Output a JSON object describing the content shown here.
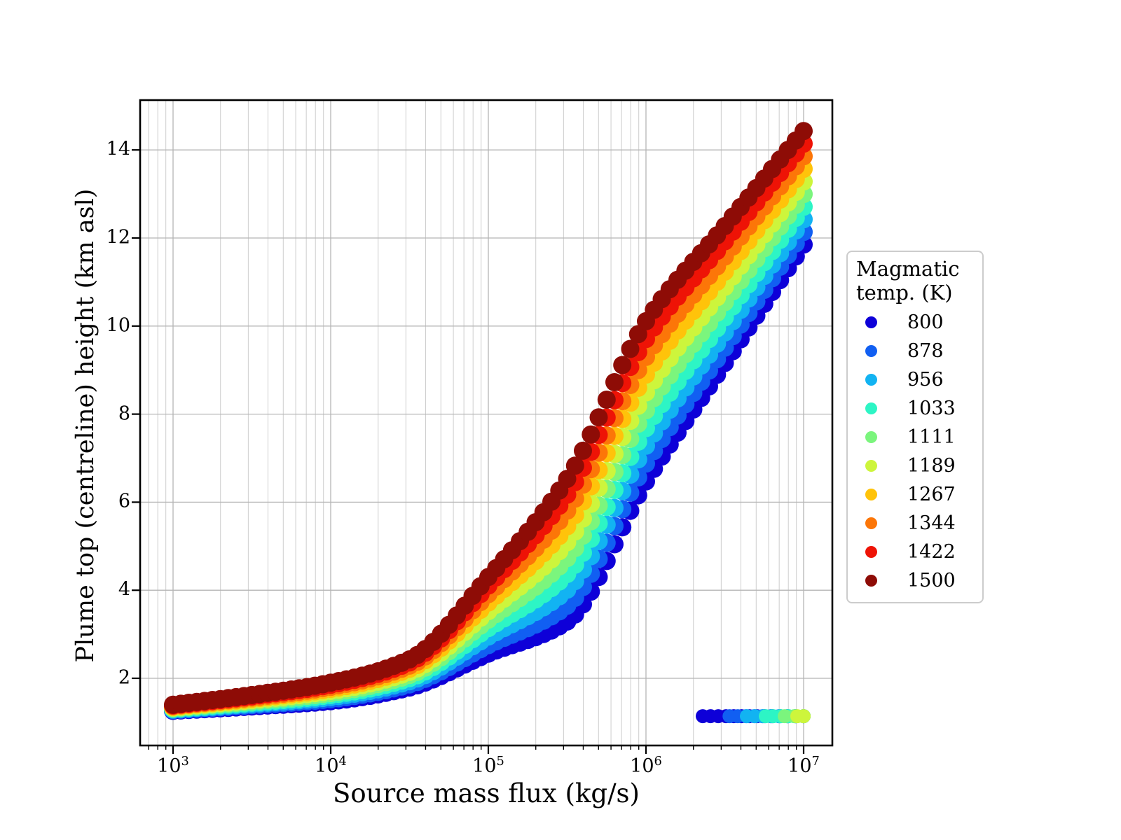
{
  "chart_data": {
    "type": "scatter",
    "title": "",
    "xlabel": "Source mass flux (kg/s)",
    "ylabel": "Plume top (centreline) height (km asl)",
    "x_scale": "log",
    "x_tick_base": "10",
    "x_tick_exponents": [
      3,
      4,
      5,
      6,
      7
    ],
    "y_ticks": [
      2,
      4,
      6,
      8,
      10,
      12,
      14
    ],
    "xlim_log10": [
      2.791,
      7.182
    ],
    "ylim": [
      0.47,
      15.13
    ],
    "grid": {
      "x_major": true,
      "x_minor": true,
      "y_major": true,
      "major_color": "#b5b5b5",
      "minor_color": "#cdcdcd"
    },
    "legend": {
      "title_lines": [
        "Magmatic",
        "temp. (K)"
      ],
      "position": "right-outside",
      "entries": [
        {
          "temp": 800,
          "label": "800",
          "color": "#0E00D8"
        },
        {
          "temp": 878,
          "label": "878",
          "color": "#115FF2"
        },
        {
          "temp": 956,
          "label": "956",
          "color": "#12B3F2"
        },
        {
          "temp": 1033,
          "label": "1033",
          "color": "#2DF5C5"
        },
        {
          "temp": 1111,
          "label": "1111",
          "color": "#7BF57D"
        },
        {
          "temp": 1189,
          "label": "1189",
          "color": "#CDF53C"
        },
        {
          "temp": 1267,
          "label": "1267",
          "color": "#FFC30A"
        },
        {
          "temp": 1344,
          "label": "1344",
          "color": "#FC7608"
        },
        {
          "temp": 1422,
          "label": "1422",
          "color": "#EE1306"
        },
        {
          "temp": 1500,
          "label": "1500",
          "color": "#8E0C06"
        }
      ]
    },
    "buoyant_branch": {
      "note": "plume-top height (km) vs log10 mass flux; heights of intermediate temperatures lie proportionally between the 800 K and 1500 K curves",
      "anchor_log10_flux": [
        3.0,
        3.5,
        4.0,
        4.5,
        5.0,
        5.5,
        6.0,
        6.5,
        7.0
      ],
      "height_km_800K": [
        1.26,
        1.36,
        1.48,
        1.79,
        2.56,
        3.29,
        6.47,
        9.16,
        11.85
      ],
      "height_km_1500K": [
        1.4,
        1.62,
        1.9,
        2.43,
        4.3,
        6.53,
        10.11,
        12.27,
        14.43
      ]
    },
    "collapsed_branch": {
      "height_km": 1.14,
      "end_log10_flux": 7.0,
      "entries": [
        {
          "temp": 800,
          "start_log10_flux": 6.36
        },
        {
          "temp": 878,
          "start_log10_flux": 6.53
        },
        {
          "temp": 956,
          "start_log10_flux": 6.64
        },
        {
          "temp": 1033,
          "start_log10_flux": 6.76
        },
        {
          "temp": 1111,
          "start_log10_flux": 6.88
        },
        {
          "temp": 1189,
          "start_log10_flux": 6.96
        }
      ]
    },
    "marker": {
      "radius_px": 13,
      "collapsed_radius_px": 10,
      "sample_step_log10": 0.05
    }
  }
}
